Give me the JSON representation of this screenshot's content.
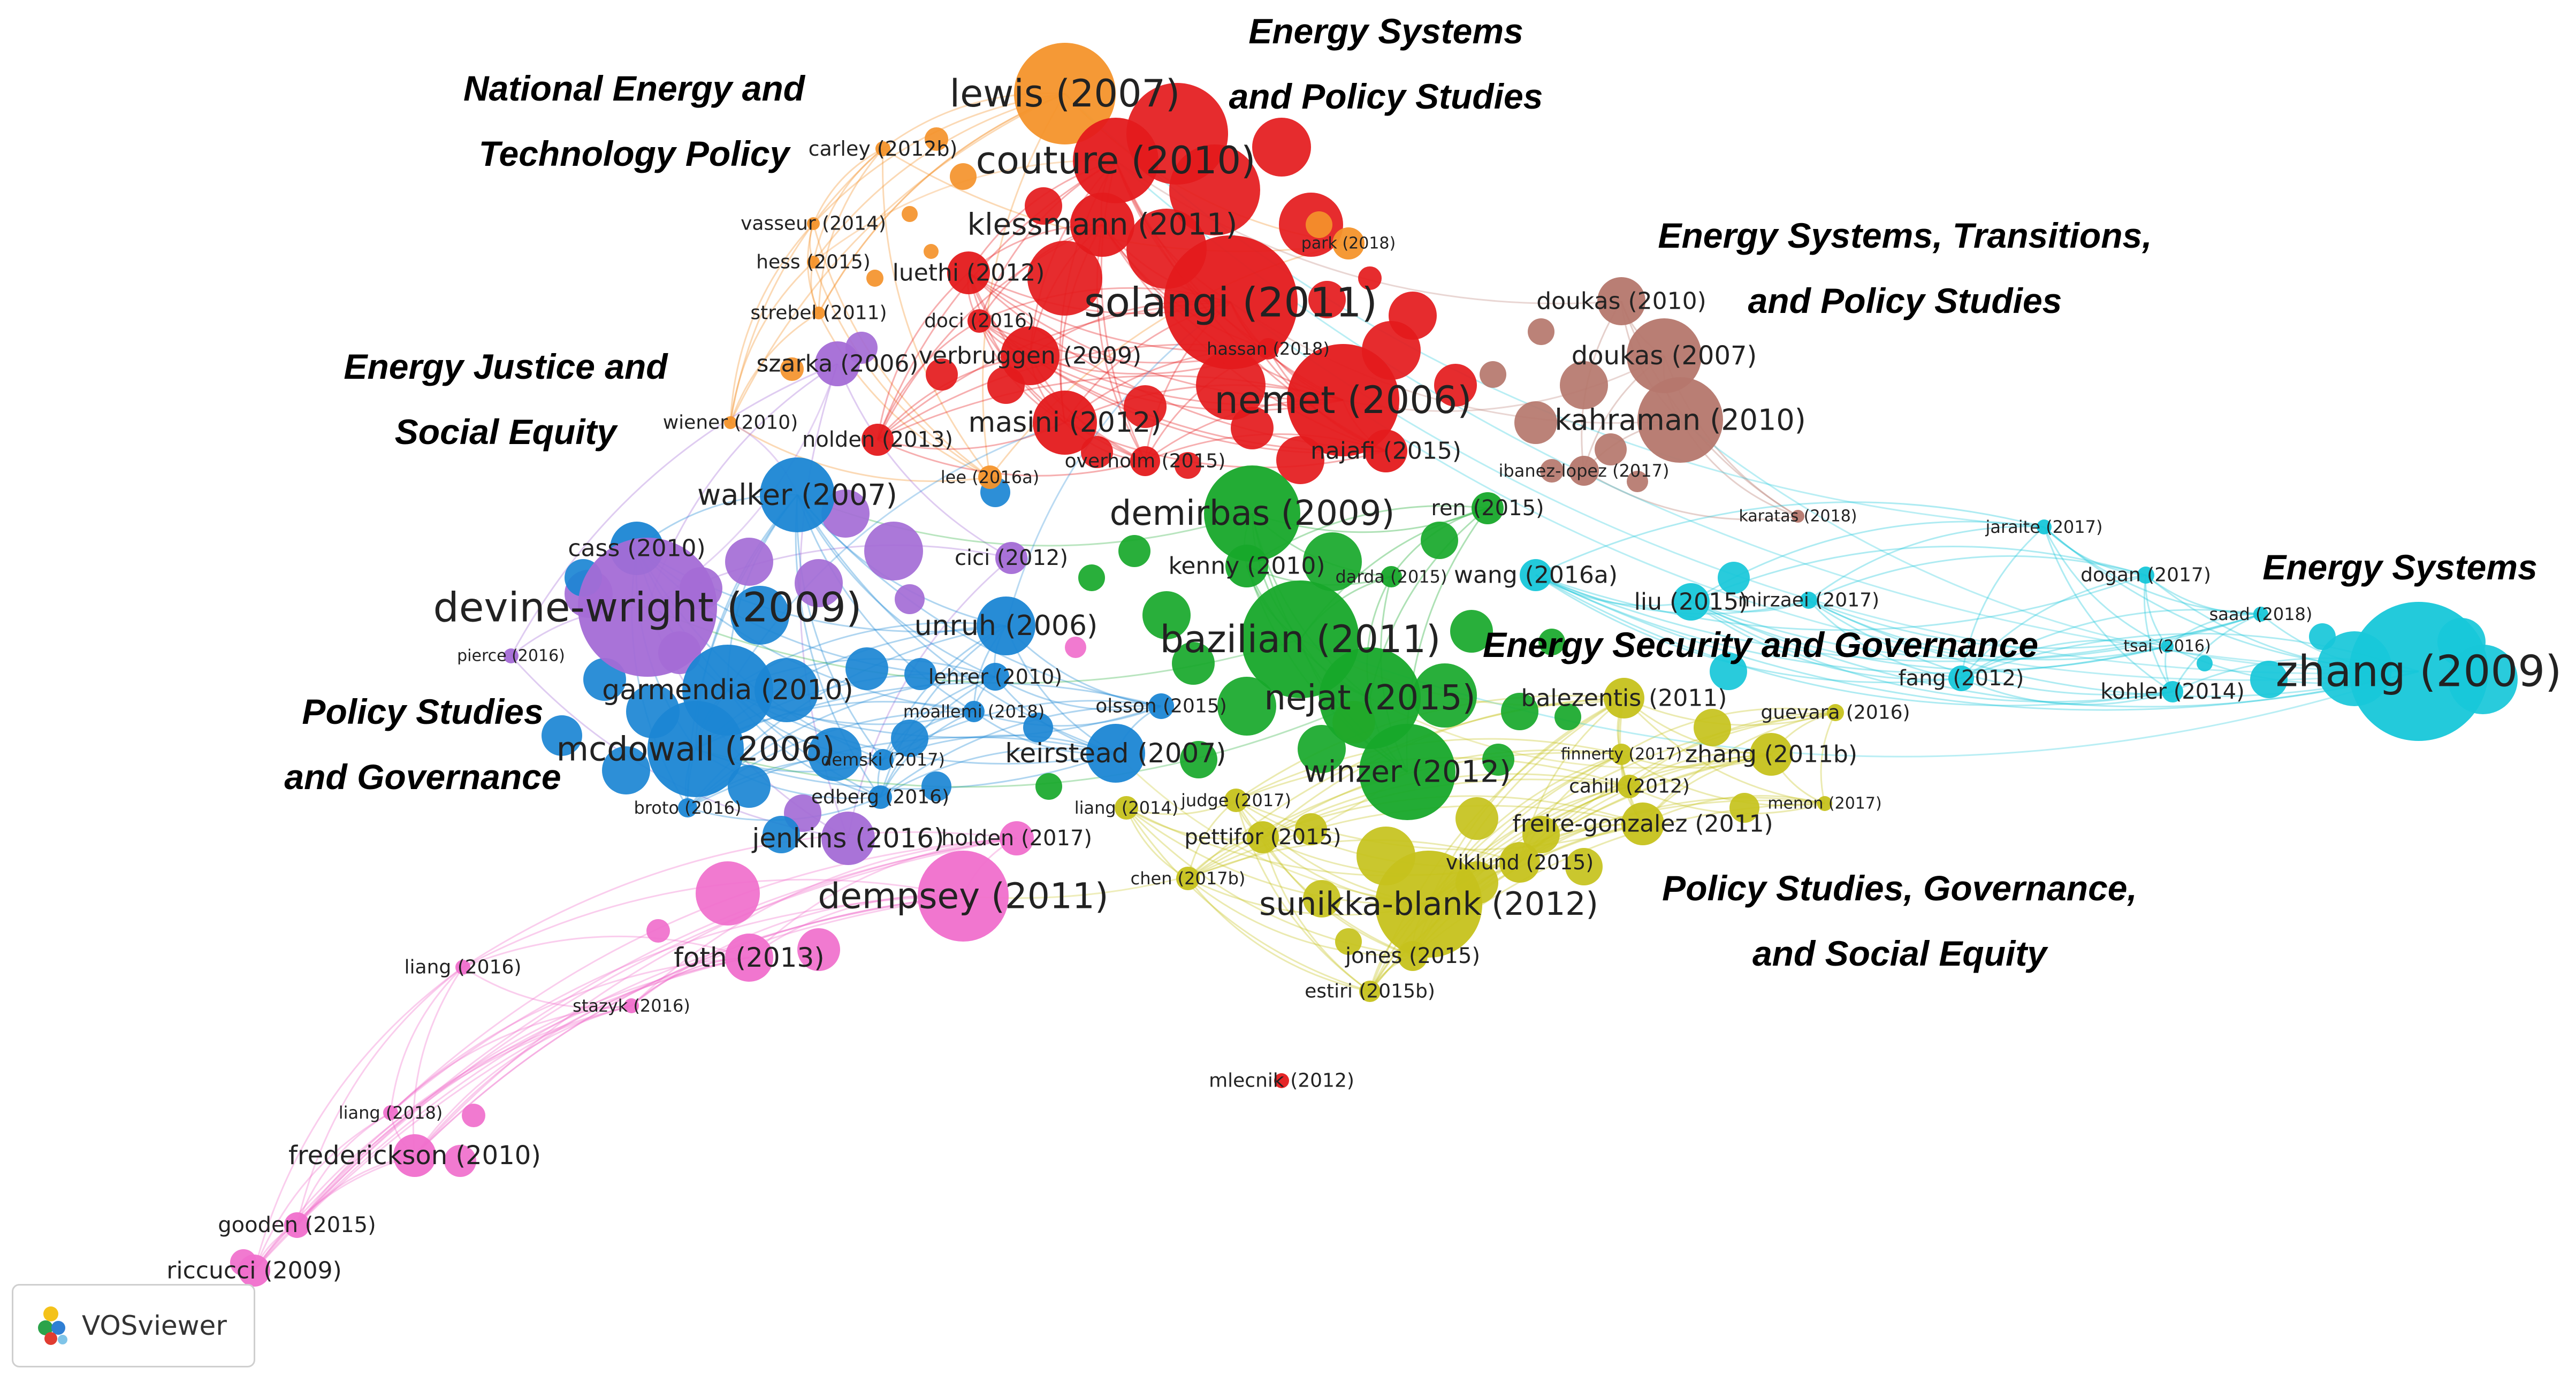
{
  "clusters": [
    {
      "id": "red",
      "color": "#e41a1c"
    },
    {
      "id": "orange",
      "color": "#f4932b"
    },
    {
      "id": "brown",
      "color": "#b5776d"
    },
    {
      "id": "purple",
      "color": "#a46cd6"
    },
    {
      "id": "blue",
      "color": "#1b86d4"
    },
    {
      "id": "green",
      "color": "#17a82a"
    },
    {
      "id": "olive",
      "color": "#c6c21c"
    },
    {
      "id": "cyan",
      "color": "#17c7d9"
    },
    {
      "id": "pink",
      "color": "#f06fcc"
    }
  ],
  "cluster_labels": [
    {
      "lines": [
        "Energy Systems",
        "and Policy Studies"
      ]
    },
    {
      "lines": [
        "National Energy and",
        "Technology Policy"
      ]
    },
    {
      "lines": [
        "Energy Systems, Transitions,",
        "and Policy Studies"
      ]
    },
    {
      "lines": [
        "Energy Justice and",
        "Social Equity"
      ]
    },
    {
      "lines": [
        "Energy Systems"
      ]
    },
    {
      "lines": [
        "Energy Security and Governance"
      ]
    },
    {
      "lines": [
        "Policy Studies",
        "and Governance"
      ]
    },
    {
      "lines": [
        "Policy Studies, Governance,",
        "and Social Equity"
      ]
    }
  ],
  "nodes": [
    {
      "label": "lewis (2007)",
      "cluster": "orange"
    },
    {
      "label": "couture (2010)",
      "cluster": "red"
    },
    {
      "label": "carley (2012b)",
      "cluster": "orange"
    },
    {
      "label": "klessmann (2011)",
      "cluster": "red"
    },
    {
      "label": "vasseur (2014)",
      "cluster": "orange"
    },
    {
      "label": "hess (2015)",
      "cluster": "orange"
    },
    {
      "label": "luethi (2012)",
      "cluster": "red"
    },
    {
      "label": "park (2018)",
      "cluster": "orange"
    },
    {
      "label": "solangi (2011)",
      "cluster": "red"
    },
    {
      "label": "strebel (2011)",
      "cluster": "orange"
    },
    {
      "label": "doci (2016)",
      "cluster": "red"
    },
    {
      "label": "verbruggen (2009)",
      "cluster": "red"
    },
    {
      "label": "hassan (2018)",
      "cluster": "red"
    },
    {
      "label": "szarka (2006)",
      "cluster": "purple"
    },
    {
      "label": "nemet (2006)",
      "cluster": "red"
    },
    {
      "label": "doukas (2010)",
      "cluster": "brown"
    },
    {
      "label": "doukas (2007)",
      "cluster": "brown"
    },
    {
      "label": "kahraman (2010)",
      "cluster": "brown"
    },
    {
      "label": "wiener (2010)",
      "cluster": "orange"
    },
    {
      "label": "nolden (2013)",
      "cluster": "red"
    },
    {
      "label": "masini (2012)",
      "cluster": "red"
    },
    {
      "label": "najafi (2015)",
      "cluster": "red"
    },
    {
      "label": "overholm (2015)",
      "cluster": "red"
    },
    {
      "label": "ibanez-lopez (2017)",
      "cluster": "brown"
    },
    {
      "label": "lee (2016a)",
      "cluster": "orange"
    },
    {
      "label": "walker (2007)",
      "cluster": "blue"
    },
    {
      "label": "demirbas (2009)",
      "cluster": "green"
    },
    {
      "label": "ren (2015)",
      "cluster": "green"
    },
    {
      "label": "karatas (2018)",
      "cluster": "brown"
    },
    {
      "label": "jaraite (2017)",
      "cluster": "cyan"
    },
    {
      "label": "cass (2010)",
      "cluster": "blue"
    },
    {
      "label": "cici (2012)",
      "cluster": "purple"
    },
    {
      "label": "kenny (2010)",
      "cluster": "green"
    },
    {
      "label": "darda (2015)",
      "cluster": "green"
    },
    {
      "label": "wang (2016a)",
      "cluster": "cyan"
    },
    {
      "label": "dogan (2017)",
      "cluster": "cyan"
    },
    {
      "label": "devine-wright (2009)",
      "cluster": "purple"
    },
    {
      "label": "liu (2015)",
      "cluster": "cyan"
    },
    {
      "label": "mirzaei (2017)",
      "cluster": "cyan"
    },
    {
      "label": "unruh (2006)",
      "cluster": "blue"
    },
    {
      "label": "saad (2018)",
      "cluster": "cyan"
    },
    {
      "label": "bazilian (2011)",
      "cluster": "green"
    },
    {
      "label": "tsai (2016)",
      "cluster": "cyan"
    },
    {
      "label": "pierce (2016)",
      "cluster": "purple"
    },
    {
      "label": "zhang (2009)",
      "cluster": "cyan"
    },
    {
      "label": "fang (2012)",
      "cluster": "cyan"
    },
    {
      "label": "lehrer (2010)",
      "cluster": "blue"
    },
    {
      "label": "garmendia (2010)",
      "cluster": "blue"
    },
    {
      "label": "kohler (2014)",
      "cluster": "cyan"
    },
    {
      "label": "nejat (2015)",
      "cluster": "green"
    },
    {
      "label": "balezentis (2011)",
      "cluster": "olive"
    },
    {
      "label": "moallemi (2018)",
      "cluster": "blue"
    },
    {
      "label": "olsson (2015)",
      "cluster": "blue"
    },
    {
      "label": "guevara (2016)",
      "cluster": "olive"
    },
    {
      "label": "mcdowall (2006)",
      "cluster": "blue"
    },
    {
      "label": "keirstead (2007)",
      "cluster": "blue"
    },
    {
      "label": "demski (2017)",
      "cluster": "blue"
    },
    {
      "label": "finnerty (2017)",
      "cluster": "olive"
    },
    {
      "label": "zhang (2011b)",
      "cluster": "olive"
    },
    {
      "label": "winzer (2012)",
      "cluster": "green"
    },
    {
      "label": "cahill (2012)",
      "cluster": "olive"
    },
    {
      "label": "broto (2016)",
      "cluster": "blue"
    },
    {
      "label": "edberg (2016)",
      "cluster": "blue"
    },
    {
      "label": "liang (2014)",
      "cluster": "olive"
    },
    {
      "label": "judge (2017)",
      "cluster": "olive"
    },
    {
      "label": "menon (2017)",
      "cluster": "olive"
    },
    {
      "label": "freire-gonzalez (2011)",
      "cluster": "olive"
    },
    {
      "label": "jenkins (2016)",
      "cluster": "purple"
    },
    {
      "label": "holden (2017)",
      "cluster": "pink"
    },
    {
      "label": "pettifor (2015)",
      "cluster": "olive"
    },
    {
      "label": "viklund (2015)",
      "cluster": "olive"
    },
    {
      "label": "chen (2017b)",
      "cluster": "olive"
    },
    {
      "label": "dempsey (2011)",
      "cluster": "pink"
    },
    {
      "label": "sunikka-blank (2012)",
      "cluster": "olive"
    },
    {
      "label": "foth (2013)",
      "cluster": "pink"
    },
    {
      "label": "jones (2015)",
      "cluster": "olive"
    },
    {
      "label": "liang (2016)",
      "cluster": "pink"
    },
    {
      "label": "estiri (2015b)",
      "cluster": "olive"
    },
    {
      "label": "stazyk (2016)",
      "cluster": "pink"
    },
    {
      "label": "mlecnik (2012)",
      "cluster": "red"
    },
    {
      "label": "liang (2018)",
      "cluster": "pink"
    },
    {
      "label": "frederickson (2010)",
      "cluster": "pink"
    },
    {
      "label": "gooden (2015)",
      "cluster": "pink"
    },
    {
      "label": "riccucci (2009)",
      "cluster": "pink"
    }
  ],
  "logo": {
    "icon": "vosviewer-logo-icon",
    "text": "VOSviewer"
  }
}
